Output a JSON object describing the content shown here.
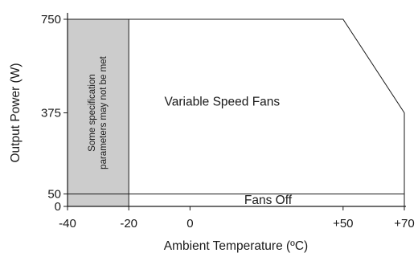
{
  "chart_data": {
    "type": "area",
    "xlabel": "Ambient Temperature (ºC)",
    "ylabel": "Output Power (W)",
    "xlim": [
      -40,
      70
    ],
    "ylim": [
      0,
      750
    ],
    "x_ticks": [
      {
        "value": -40,
        "label": "-40"
      },
      {
        "value": -20,
        "label": "-20"
      },
      {
        "value": 0,
        "label": "0"
      },
      {
        "value": 50,
        "label": "+50"
      },
      {
        "value": 70,
        "label": "+70"
      }
    ],
    "y_ticks": [
      {
        "value": 0,
        "label": "0"
      },
      {
        "value": 50,
        "label": "50"
      },
      {
        "value": 375,
        "label": "375"
      },
      {
        "value": 750,
        "label": "750"
      }
    ],
    "series": [
      {
        "name": "",
        "x": [
          -40,
          50,
          70,
          70
        ],
        "y": [
          750,
          750,
          375,
          0
        ]
      }
    ],
    "threshold_line": {
      "y": 50,
      "x_range": [
        -40,
        70
      ]
    },
    "shaded_region": {
      "x_range": [
        -40,
        -20
      ],
      "y_range": [
        0,
        750
      ],
      "color": "#cccccc",
      "text_lines": [
        "Some specification",
        "parameters may not be met"
      ]
    },
    "region_labels": [
      {
        "text": "Variable Speed Fans",
        "x": 0,
        "y": 420
      },
      {
        "text": "Fans Off",
        "x": 15,
        "y": 25
      }
    ],
    "grid": false,
    "colors": {
      "line": "#1a1a1a",
      "shade": "#cccccc"
    }
  }
}
